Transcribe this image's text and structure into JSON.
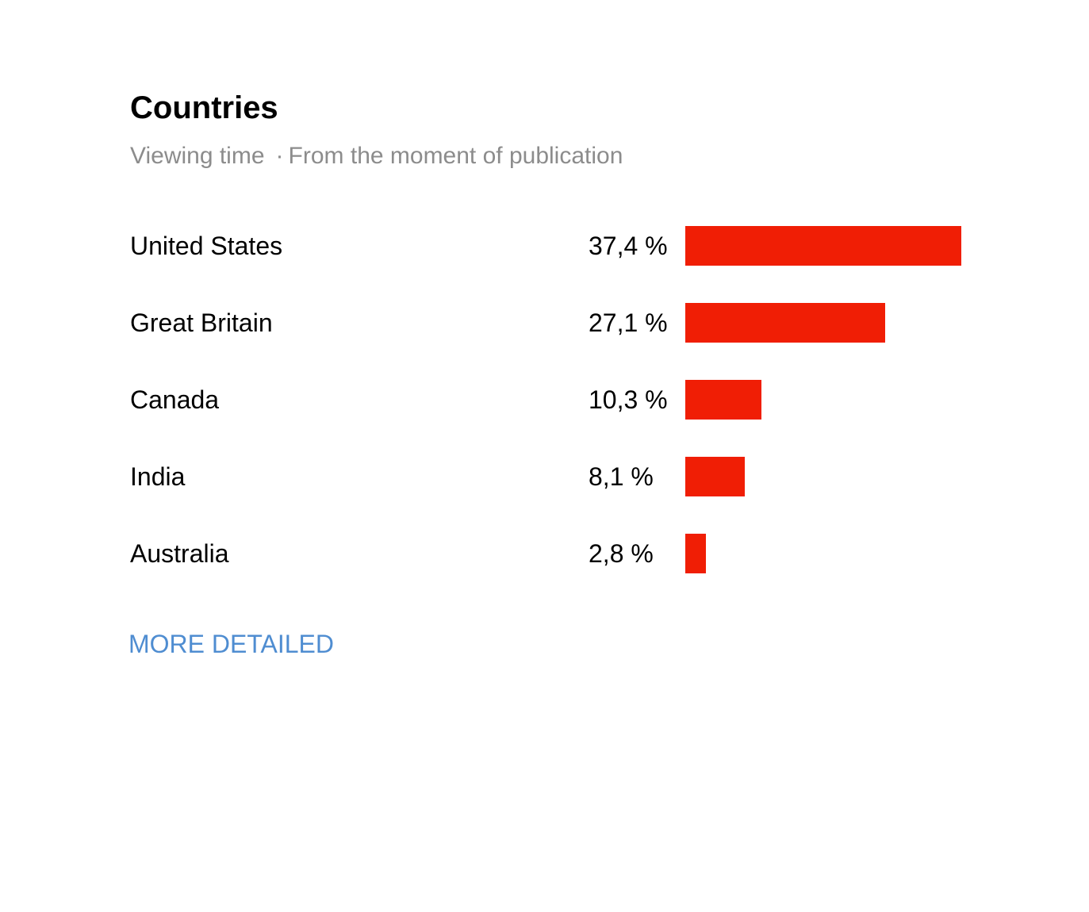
{
  "header": {
    "title": "Countries",
    "metric": "Viewing time",
    "separator": "·",
    "period": "From the moment of publication"
  },
  "bar_color": "#f01e05",
  "link_color": "#4f8dd1",
  "rows": [
    {
      "country": "United States",
      "percent_label": "37,4 %",
      "value": 37.4
    },
    {
      "country": "Great Britain",
      "percent_label": "27,1 %",
      "value": 27.1
    },
    {
      "country": "Canada",
      "percent_label": "10,3 %",
      "value": 10.3
    },
    {
      "country": "India",
      "percent_label": "8,1 %",
      "value": 8.1
    },
    {
      "country": "Australia",
      "percent_label": "2,8 %",
      "value": 2.8
    }
  ],
  "more_label": "MORE DETAILED"
}
